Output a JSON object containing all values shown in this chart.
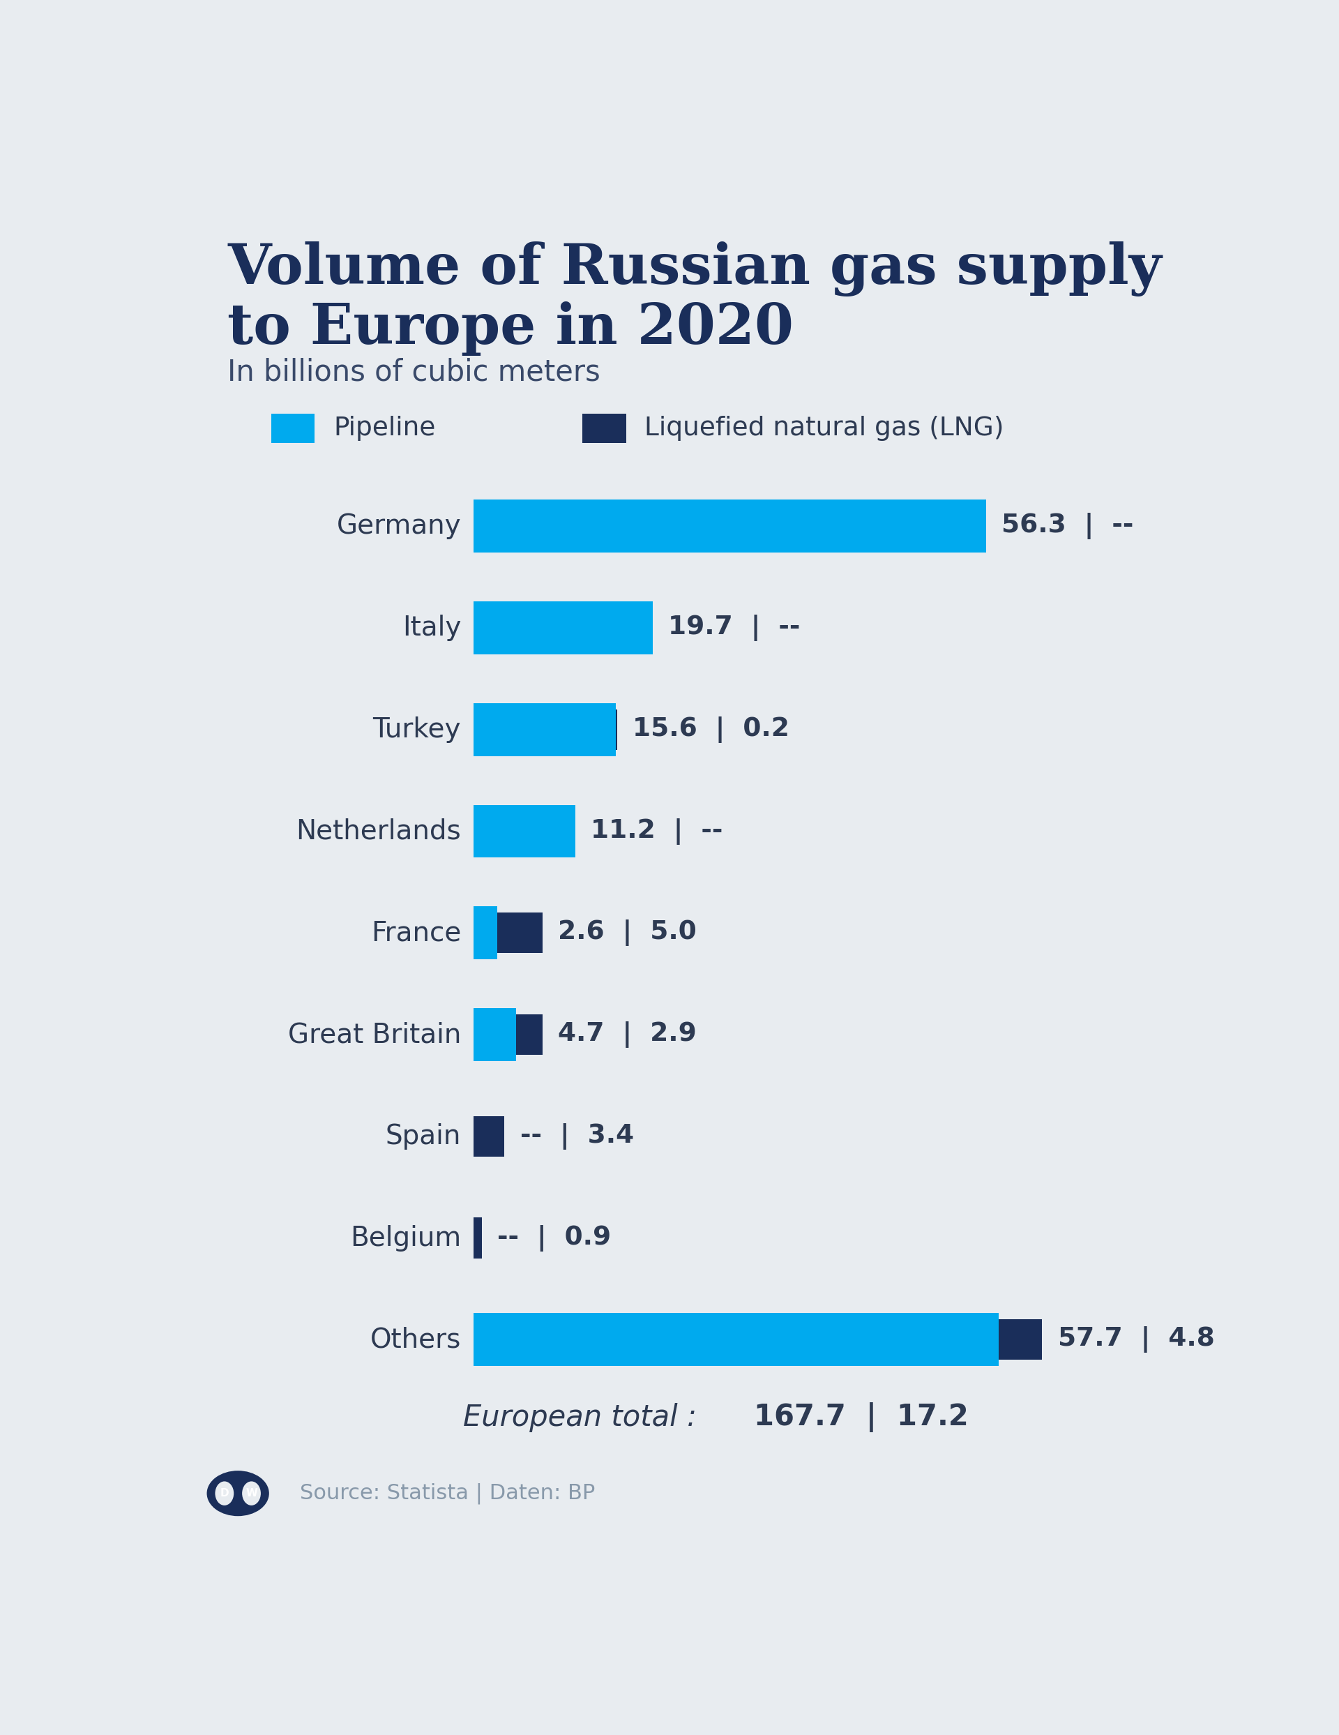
{
  "title_line1": "Volume of Russian gas supply",
  "title_line2": "to Europe in 2020",
  "subtitle": "In billions of cubic meters",
  "bg_color": "#e8ecf0",
  "title_color": "#1a2e5a",
  "subtitle_color": "#3a4a6a",
  "label_color": "#2d3a52",
  "pipeline_color": "#00aaee",
  "lng_color": "#1a2e5a",
  "source_color": "#8899aa",
  "source_text": "Source: Statista | Daten: BP",
  "countries": [
    "Germany",
    "Italy",
    "Turkey",
    "Netherlands",
    "France",
    "Great Britain",
    "Spain",
    "Belgium",
    "Others"
  ],
  "pipeline": [
    56.3,
    19.7,
    15.6,
    11.2,
    2.6,
    4.7,
    0.0,
    0.0,
    57.7
  ],
  "lng": [
    0.0,
    0.0,
    0.2,
    0.0,
    5.0,
    2.9,
    3.4,
    0.9,
    4.8
  ],
  "pipeline_labels": [
    "56.3",
    "19.7",
    "15.6",
    "11.2",
    "2.6",
    "4.7",
    "--",
    "--",
    "57.7"
  ],
  "lng_labels": [
    "--",
    "--",
    "0.2",
    "--",
    "5.0",
    "2.9",
    "3.4",
    "0.9",
    "4.8"
  ],
  "total_pipeline": "167.7",
  "total_lng": "17.2",
  "legend_pipeline": "Pipeline",
  "legend_lng": "Liquefied natural gas (LNG)",
  "max_value": 65
}
